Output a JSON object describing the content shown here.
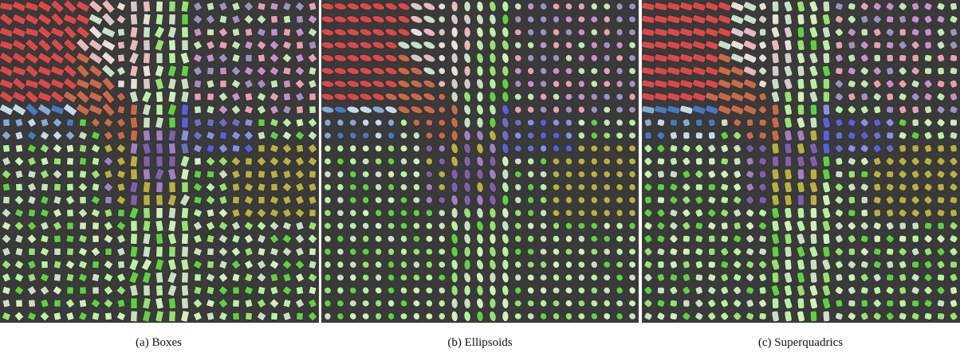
{
  "figure": {
    "captions": [
      "(a) Boxes",
      "(b) Ellipsoids",
      "(c) Superquadrics"
    ]
  }
}
